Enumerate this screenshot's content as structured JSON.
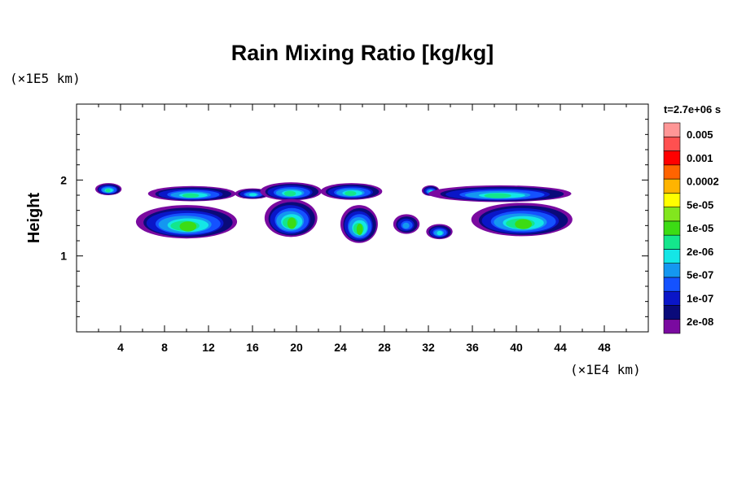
{
  "chart_data": {
    "type": "heatmap",
    "title": "Rain Mixing Ratio [kg/kg]",
    "ylabel": "Height",
    "y_unit": "(×1E5 km)",
    "x_unit": "(×1E4 km)",
    "time_label": "t=2.7e+06 s",
    "xlim": [
      0,
      52
    ],
    "ylim": [
      0,
      3
    ],
    "x_ticks": [
      4,
      8,
      12,
      16,
      20,
      24,
      28,
      32,
      36,
      40,
      44,
      48
    ],
    "x_tick_labels": [
      "4",
      "8",
      "12",
      "16",
      "20",
      "24",
      "28",
      "32",
      "36",
      "40",
      "44",
      "48"
    ],
    "y_ticks": [
      1,
      2
    ],
    "y_tick_labels": [
      "1",
      "2"
    ],
    "colorbar": {
      "colors": [
        "#7a0aa0",
        "#0a0a7a",
        "#0a16c8",
        "#1452ff",
        "#1497f0",
        "#14e6e6",
        "#14e68c",
        "#3cdc14",
        "#82e61e",
        "#ffff00",
        "#ffb400",
        "#ff6400",
        "#ff0000",
        "#ff5050",
        "#ff9696"
      ],
      "labels": [
        "2e-08",
        "1e-07",
        "5e-07",
        "2e-06",
        "1e-05",
        "5e-05",
        "0.0002",
        "0.001",
        "0.005"
      ]
    },
    "regions": [
      {
        "x": 2.9,
        "y": 1.88,
        "rx": 1.2,
        "ry": 0.08,
        "level": 6
      },
      {
        "x": 10.5,
        "y": 1.82,
        "rx": 4.0,
        "ry": 0.1,
        "level": 6
      },
      {
        "x": 16.0,
        "y": 1.82,
        "rx": 1.6,
        "ry": 0.07,
        "level": 5
      },
      {
        "x": 19.5,
        "y": 1.85,
        "rx": 2.8,
        "ry": 0.12,
        "level": 6
      },
      {
        "x": 25.0,
        "y": 1.85,
        "rx": 2.8,
        "ry": 0.11,
        "level": 6
      },
      {
        "x": 32.2,
        "y": 1.86,
        "rx": 0.8,
        "ry": 0.07,
        "level": 5
      },
      {
        "x": 38.5,
        "y": 1.82,
        "rx": 6.5,
        "ry": 0.11,
        "level": 6
      },
      {
        "x": 10.0,
        "y": 1.45,
        "rx": 4.6,
        "ry": 0.22,
        "level": 7
      },
      {
        "x": 19.5,
        "y": 1.5,
        "rx": 2.4,
        "ry": 0.25,
        "level": 7
      },
      {
        "x": 25.7,
        "y": 1.42,
        "rx": 1.7,
        "ry": 0.25,
        "level": 7
      },
      {
        "x": 30.0,
        "y": 1.42,
        "rx": 1.2,
        "ry": 0.13,
        "level": 4
      },
      {
        "x": 33.0,
        "y": 1.32,
        "rx": 1.2,
        "ry": 0.1,
        "level": 5
      },
      {
        "x": 40.5,
        "y": 1.48,
        "rx": 4.6,
        "ry": 0.22,
        "level": 7
      }
    ]
  }
}
